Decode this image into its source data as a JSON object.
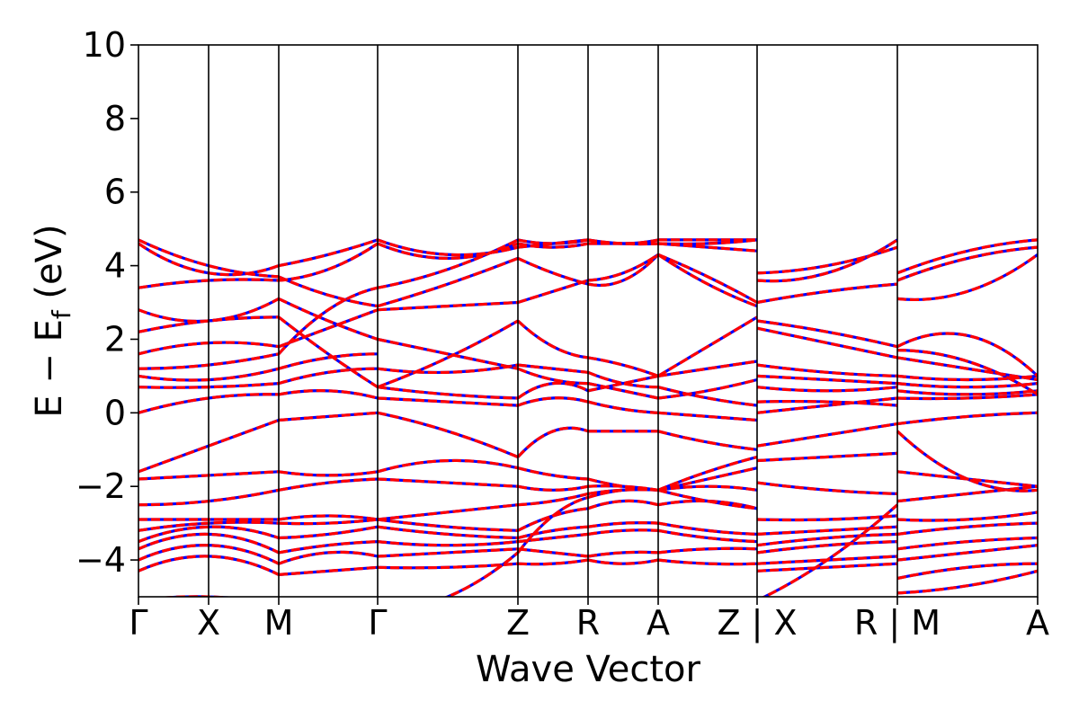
{
  "chart_data": {
    "type": "line",
    "title": "",
    "xlabel": "Wave Vector",
    "ylabel": "E − E_f (eV)",
    "ylabel_parts": {
      "main": "E − E",
      "sub": "f",
      "unit": " (eV)"
    },
    "ylim": [
      -5,
      10
    ],
    "y_ticks": [
      {
        "value": 10,
        "label": "10"
      },
      {
        "value": 8,
        "label": "8"
      },
      {
        "value": 6,
        "label": "6"
      },
      {
        "value": 4,
        "label": "4"
      },
      {
        "value": 2,
        "label": "2"
      },
      {
        "value": 0,
        "label": "0"
      },
      {
        "value": -2,
        "label": "−2"
      },
      {
        "value": -4,
        "label": "−4"
      }
    ],
    "x_range": [
      0,
      12.82
    ],
    "kpoints": [
      {
        "x": 0,
        "label": "Γ"
      },
      {
        "x": 1.0,
        "label": "X"
      },
      {
        "x": 2.0,
        "label": "M"
      },
      {
        "x": 3.41,
        "label": "Γ"
      },
      {
        "x": 5.41,
        "label": "Z"
      },
      {
        "x": 6.41,
        "label": "R"
      },
      {
        "x": 7.41,
        "label": "A"
      },
      {
        "x": 8.82,
        "label": "Z | X"
      },
      {
        "x": 10.82,
        "label": "R | M"
      },
      {
        "x": 12.82,
        "label": "A"
      }
    ],
    "grid": false,
    "legend": "none",
    "series": [
      {
        "color": "#0000ff",
        "style": "solid"
      },
      {
        "color": "#ff0000",
        "style": "dashed"
      }
    ],
    "segments": [
      {
        "k0": 0,
        "k1": 2,
        "bands": [
          [
            -4.3,
            -3.9,
            -4.4
          ],
          [
            -4.0,
            -3.6,
            -4.1
          ],
          [
            -3.7,
            -3.3,
            -3.8
          ],
          [
            -3.5,
            -3.1,
            -3.4
          ],
          [
            -3.2,
            -3.0,
            -3.0
          ],
          [
            -2.9,
            -2.9,
            -2.9
          ],
          [
            -2.5,
            -2.4,
            -2.1
          ],
          [
            -1.8,
            -1.7,
            -1.6
          ],
          [
            -1.6,
            -0.9,
            -0.2
          ],
          [
            0.0,
            0.4,
            0.5
          ],
          [
            0.7,
            0.7,
            0.8
          ],
          [
            1.0,
            0.9,
            1.2
          ],
          [
            1.2,
            1.3,
            1.6
          ],
          [
            1.6,
            1.9,
            1.8
          ],
          [
            2.2,
            2.5,
            2.6
          ],
          [
            2.8,
            2.5,
            3.1
          ],
          [
            3.4,
            3.6,
            3.6
          ],
          [
            4.6,
            3.8,
            4.0
          ],
          [
            4.7,
            4.0,
            3.7
          ],
          [
            -5.1,
            -5.0,
            -5.2
          ]
        ]
      },
      {
        "k0": 2,
        "k1": 3.41,
        "bands": [
          [
            -4.4,
            -4.3,
            -4.2
          ],
          [
            -4.1,
            -3.8,
            -3.9
          ],
          [
            -3.8,
            -3.6,
            -3.5
          ],
          [
            -3.4,
            -3.3,
            -3.1
          ],
          [
            -3.0,
            -3.0,
            -2.9
          ],
          [
            -2.9,
            -2.8,
            -2.9
          ],
          [
            -2.1,
            -1.9,
            -1.8
          ],
          [
            -1.6,
            -1.7,
            -1.6
          ],
          [
            -0.2,
            -0.1,
            0.0
          ],
          [
            0.5,
            0.6,
            0.4
          ],
          [
            0.8,
            1.1,
            1.2
          ],
          [
            1.2,
            1.5,
            1.6
          ],
          [
            1.6,
            2.8,
            3.4
          ],
          [
            1.8,
            2.3,
            2.8
          ],
          [
            2.6,
            1.6,
            0.7
          ],
          [
            3.1,
            2.5,
            2.0
          ],
          [
            3.6,
            3.9,
            4.6
          ],
          [
            4.0,
            4.3,
            4.7
          ],
          [
            3.7,
            3.2,
            2.9
          ],
          [
            -5.2,
            -5.3,
            -5.4
          ]
        ]
      },
      {
        "k0": 3.41,
        "k1": 5.41,
        "bands": [
          [
            -4.2,
            -4.2,
            -4.1
          ],
          [
            -3.9,
            -3.8,
            -3.7
          ],
          [
            -3.5,
            -3.6,
            -3.5
          ],
          [
            -3.1,
            -3.3,
            -3.4
          ],
          [
            -2.9,
            -3.1,
            -3.2
          ],
          [
            -2.9,
            -2.7,
            -2.5
          ],
          [
            -1.8,
            -1.9,
            -2.0
          ],
          [
            -1.6,
            -1.3,
            -1.5
          ],
          [
            0.0,
            -0.5,
            -1.2
          ],
          [
            0.4,
            0.3,
            0.2
          ],
          [
            0.7,
            0.5,
            0.4
          ],
          [
            1.2,
            1.1,
            1.3
          ],
          [
            3.4,
            3.9,
            4.7
          ],
          [
            2.8,
            2.9,
            3.0
          ],
          [
            0.7,
            1.5,
            2.5
          ],
          [
            2.0,
            1.6,
            1.2
          ],
          [
            4.6,
            4.2,
            4.6
          ],
          [
            4.7,
            4.3,
            4.5
          ],
          [
            2.9,
            3.5,
            4.2
          ],
          [
            -5.4,
            -5.0,
            -3.8
          ]
        ]
      },
      {
        "k0": 5.41,
        "k1": 6.41,
        "bands": [
          [
            -4.1,
            -4.1,
            -4.0
          ],
          [
            -3.7,
            -3.8,
            -3.9
          ],
          [
            -3.5,
            -3.4,
            -3.3
          ],
          [
            -3.4,
            -3.2,
            -3.1
          ],
          [
            -3.2,
            -2.8,
            -2.6
          ],
          [
            -2.5,
            -2.4,
            -2.2
          ],
          [
            -2.0,
            -2.1,
            -2.0
          ],
          [
            -1.5,
            -1.7,
            -1.8
          ],
          [
            -1.2,
            -0.5,
            -0.5
          ],
          [
            0.2,
            0.4,
            0.3
          ],
          [
            0.4,
            0.8,
            0.6
          ],
          [
            1.3,
            1.2,
            1.1
          ],
          [
            4.7,
            4.6,
            4.7
          ],
          [
            3.0,
            3.3,
            3.6
          ],
          [
            2.5,
            1.8,
            1.5
          ],
          [
            1.2,
            0.9,
            0.8
          ],
          [
            4.6,
            4.5,
            4.6
          ],
          [
            4.5,
            4.6,
            4.7
          ],
          [
            4.2,
            3.8,
            3.5
          ],
          [
            -3.8,
            -2.8,
            -2.3
          ]
        ]
      },
      {
        "k0": 6.41,
        "k1": 7.41,
        "bands": [
          [
            -4.0,
            -4.1,
            -4.0
          ],
          [
            -3.9,
            -3.8,
            -3.8
          ],
          [
            -3.3,
            -3.2,
            -3.2
          ],
          [
            -3.1,
            -3.0,
            -3.0
          ],
          [
            -2.6,
            -2.4,
            -2.5
          ],
          [
            -2.2,
            -2.1,
            -2.1
          ],
          [
            -2.0,
            -2.0,
            -2.1
          ],
          [
            -1.8,
            -2.0,
            -2.1
          ],
          [
            -0.5,
            -0.5,
            -0.5
          ],
          [
            0.3,
            0.1,
            0.0
          ],
          [
            0.6,
            0.8,
            1.0
          ],
          [
            1.1,
            0.8,
            0.7
          ],
          [
            4.7,
            4.6,
            4.6
          ],
          [
            3.6,
            3.8,
            4.3
          ],
          [
            1.5,
            1.3,
            1.0
          ],
          [
            0.8,
            0.6,
            0.4
          ],
          [
            4.6,
            4.6,
            4.6
          ],
          [
            4.7,
            4.6,
            4.7
          ],
          [
            3.5,
            3.6,
            4.3
          ],
          [
            -2.3,
            -2.1,
            -2.1
          ]
        ]
      },
      {
        "k0": 7.41,
        "k1": 8.82,
        "bands": [
          [
            -4.0,
            -4.1,
            -4.1
          ],
          [
            -3.8,
            -3.7,
            -3.7
          ],
          [
            -3.2,
            -3.4,
            -3.5
          ],
          [
            -3.0,
            -3.2,
            -3.3
          ],
          [
            -2.5,
            -2.4,
            -2.6
          ],
          [
            -2.1,
            -1.8,
            -1.5
          ],
          [
            -2.1,
            -1.6,
            -1.2
          ],
          [
            -2.1,
            -2.4,
            -2.6
          ],
          [
            -0.5,
            -0.8,
            -1.0
          ],
          [
            0.0,
            -0.1,
            -0.2
          ],
          [
            1.0,
            1.2,
            1.4
          ],
          [
            0.7,
            0.4,
            0.2
          ],
          [
            4.6,
            4.6,
            4.7
          ],
          [
            4.3,
            3.5,
            2.9
          ],
          [
            1.0,
            1.8,
            2.6
          ],
          [
            0.4,
            0.6,
            0.9
          ],
          [
            4.6,
            4.5,
            4.4
          ],
          [
            4.7,
            4.7,
            4.7
          ],
          [
            4.3,
            3.7,
            3.0
          ],
          [
            -2.1,
            -2.0,
            -2.1
          ]
        ]
      },
      {
        "k0": 8.82,
        "k1": 10.82,
        "bands": [
          [
            -4.3,
            -4.2,
            -4.1
          ],
          [
            -4.1,
            -4.0,
            -3.9
          ],
          [
            -3.8,
            -3.6,
            -3.5
          ],
          [
            -3.6,
            -3.4,
            -3.3
          ],
          [
            -3.3,
            -3.2,
            -3.1
          ],
          [
            -2.9,
            -2.9,
            -2.8
          ],
          [
            -1.9,
            -2.1,
            -2.2
          ],
          [
            -1.3,
            -1.2,
            -1.1
          ],
          [
            -0.9,
            -0.6,
            -0.3
          ],
          [
            0.0,
            0.2,
            0.4
          ],
          [
            0.3,
            0.3,
            0.2
          ],
          [
            0.7,
            0.6,
            0.7
          ],
          [
            1.0,
            0.9,
            0.8
          ],
          [
            1.3,
            1.1,
            1.0
          ],
          [
            2.3,
            1.9,
            1.5
          ],
          [
            2.5,
            2.2,
            1.8
          ],
          [
            3.0,
            3.3,
            3.5
          ],
          [
            3.8,
            4.0,
            4.5
          ],
          [
            3.6,
            3.8,
            4.7
          ],
          [
            -5.1,
            -4.0,
            -2.5
          ]
        ]
      },
      {
        "k0": 10.82,
        "k1": 12.82,
        "bands": [
          [
            -4.9,
            -4.7,
            -4.3
          ],
          [
            -4.5,
            -4.2,
            -4.1
          ],
          [
            -4.0,
            -3.8,
            -3.6
          ],
          [
            -3.7,
            -3.5,
            -3.4
          ],
          [
            -3.3,
            -3.1,
            -3.0
          ],
          [
            -2.9,
            -2.9,
            -2.7
          ],
          [
            -1.6,
            -1.8,
            -2.0
          ],
          [
            -0.3,
            -0.1,
            0.0
          ],
          [
            0.4,
            0.4,
            0.5
          ],
          [
            0.6,
            0.5,
            0.6
          ],
          [
            0.8,
            0.7,
            0.8
          ],
          [
            1.0,
            0.9,
            1.0
          ],
          [
            1.5,
            1.2,
            0.9
          ],
          [
            1.8,
            2.1,
            1.0
          ],
          [
            1.7,
            1.4,
            0.5
          ],
          [
            3.1,
            3.3,
            4.3
          ],
          [
            3.6,
            4.2,
            4.5
          ],
          [
            3.8,
            4.4,
            4.7
          ],
          [
            -2.4,
            -2.2,
            -2.0
          ],
          [
            -0.5,
            -1.8,
            -2.1
          ]
        ]
      }
    ]
  }
}
